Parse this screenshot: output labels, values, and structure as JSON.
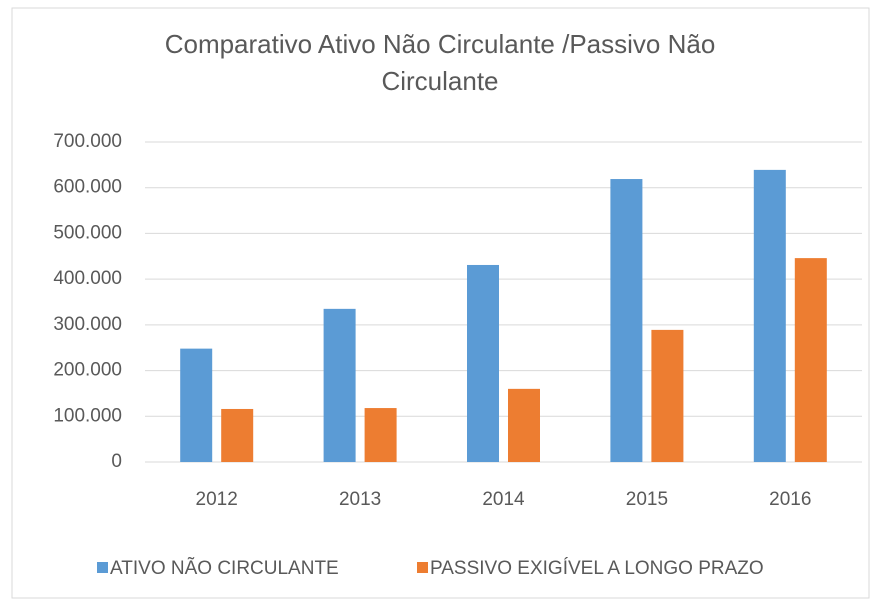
{
  "chart_data": {
    "type": "bar",
    "title": "Comparativo Ativo Não Circulante /Passivo Não Circulante",
    "categories": [
      "2012",
      "2013",
      "2014",
      "2015",
      "2016"
    ],
    "series": [
      {
        "name": "ATIVO NÃO CIRCULANTE",
        "color": "#5b9bd5",
        "values": [
          248000,
          335000,
          431000,
          619000,
          639000
        ]
      },
      {
        "name": "PASSIVO EXIGÍVEL A LONGO PRAZO",
        "color": "#ed7d31",
        "values": [
          116000,
          118000,
          160000,
          289000,
          446000
        ]
      }
    ],
    "ylim": [
      0,
      700000
    ],
    "yticks": [
      0,
      {
        "value": 100000,
        "label": "100.000"
      },
      {
        "value": 200000,
        "label": "200.000"
      },
      {
        "value": 300000,
        "label": "300.000"
      },
      {
        "value": 400000,
        "label": "400.000"
      },
      {
        "value": 500000,
        "label": "500.000"
      },
      {
        "value": 600000,
        "label": "600.000"
      },
      {
        "value": 700000,
        "label": "700.000"
      }
    ],
    "grid": true,
    "legend": "bottom"
  }
}
